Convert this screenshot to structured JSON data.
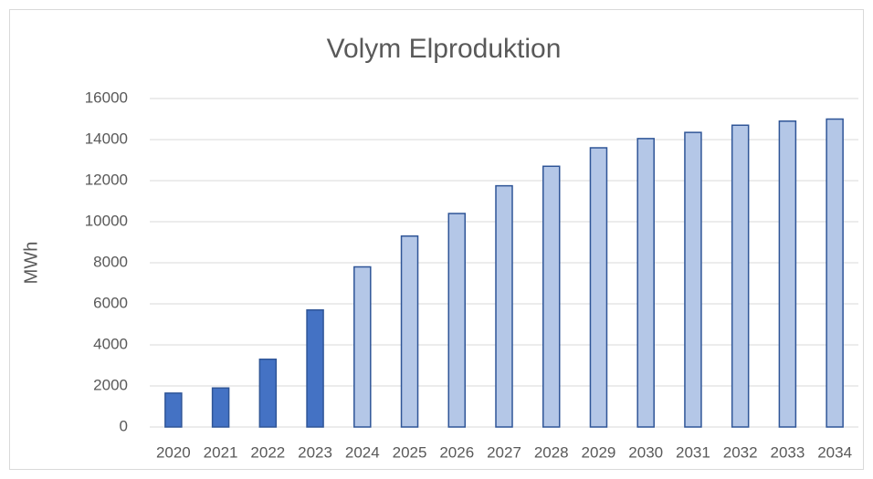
{
  "chart_data": {
    "type": "bar",
    "title": "Volym Elproduktion",
    "y_label": "MWh",
    "categories": [
      "2020",
      "2021",
      "2022",
      "2023",
      "2024",
      "2025",
      "2026",
      "2027",
      "2028",
      "2029",
      "2030",
      "2031",
      "2032",
      "2033",
      "2034"
    ],
    "values": [
      1650,
      1900,
      3300,
      5700,
      7800,
      9300,
      10400,
      11750,
      12700,
      13600,
      14050,
      14350,
      14700,
      14900,
      15000
    ],
    "colors": [
      "#4472c4",
      "#4472c4",
      "#4472c4",
      "#4472c4",
      "#b4c7e7",
      "#b4c7e7",
      "#b4c7e7",
      "#b4c7e7",
      "#b4c7e7",
      "#b4c7e7",
      "#b4c7e7",
      "#b4c7e7",
      "#b4c7e7",
      "#b4c7e7",
      "#b4c7e7"
    ],
    "border_color": "#2f5597",
    "ylim": [
      0,
      16000
    ],
    "yticks": [
      0,
      2000,
      4000,
      6000,
      8000,
      10000,
      12000,
      14000,
      16000
    ],
    "grid": true
  }
}
